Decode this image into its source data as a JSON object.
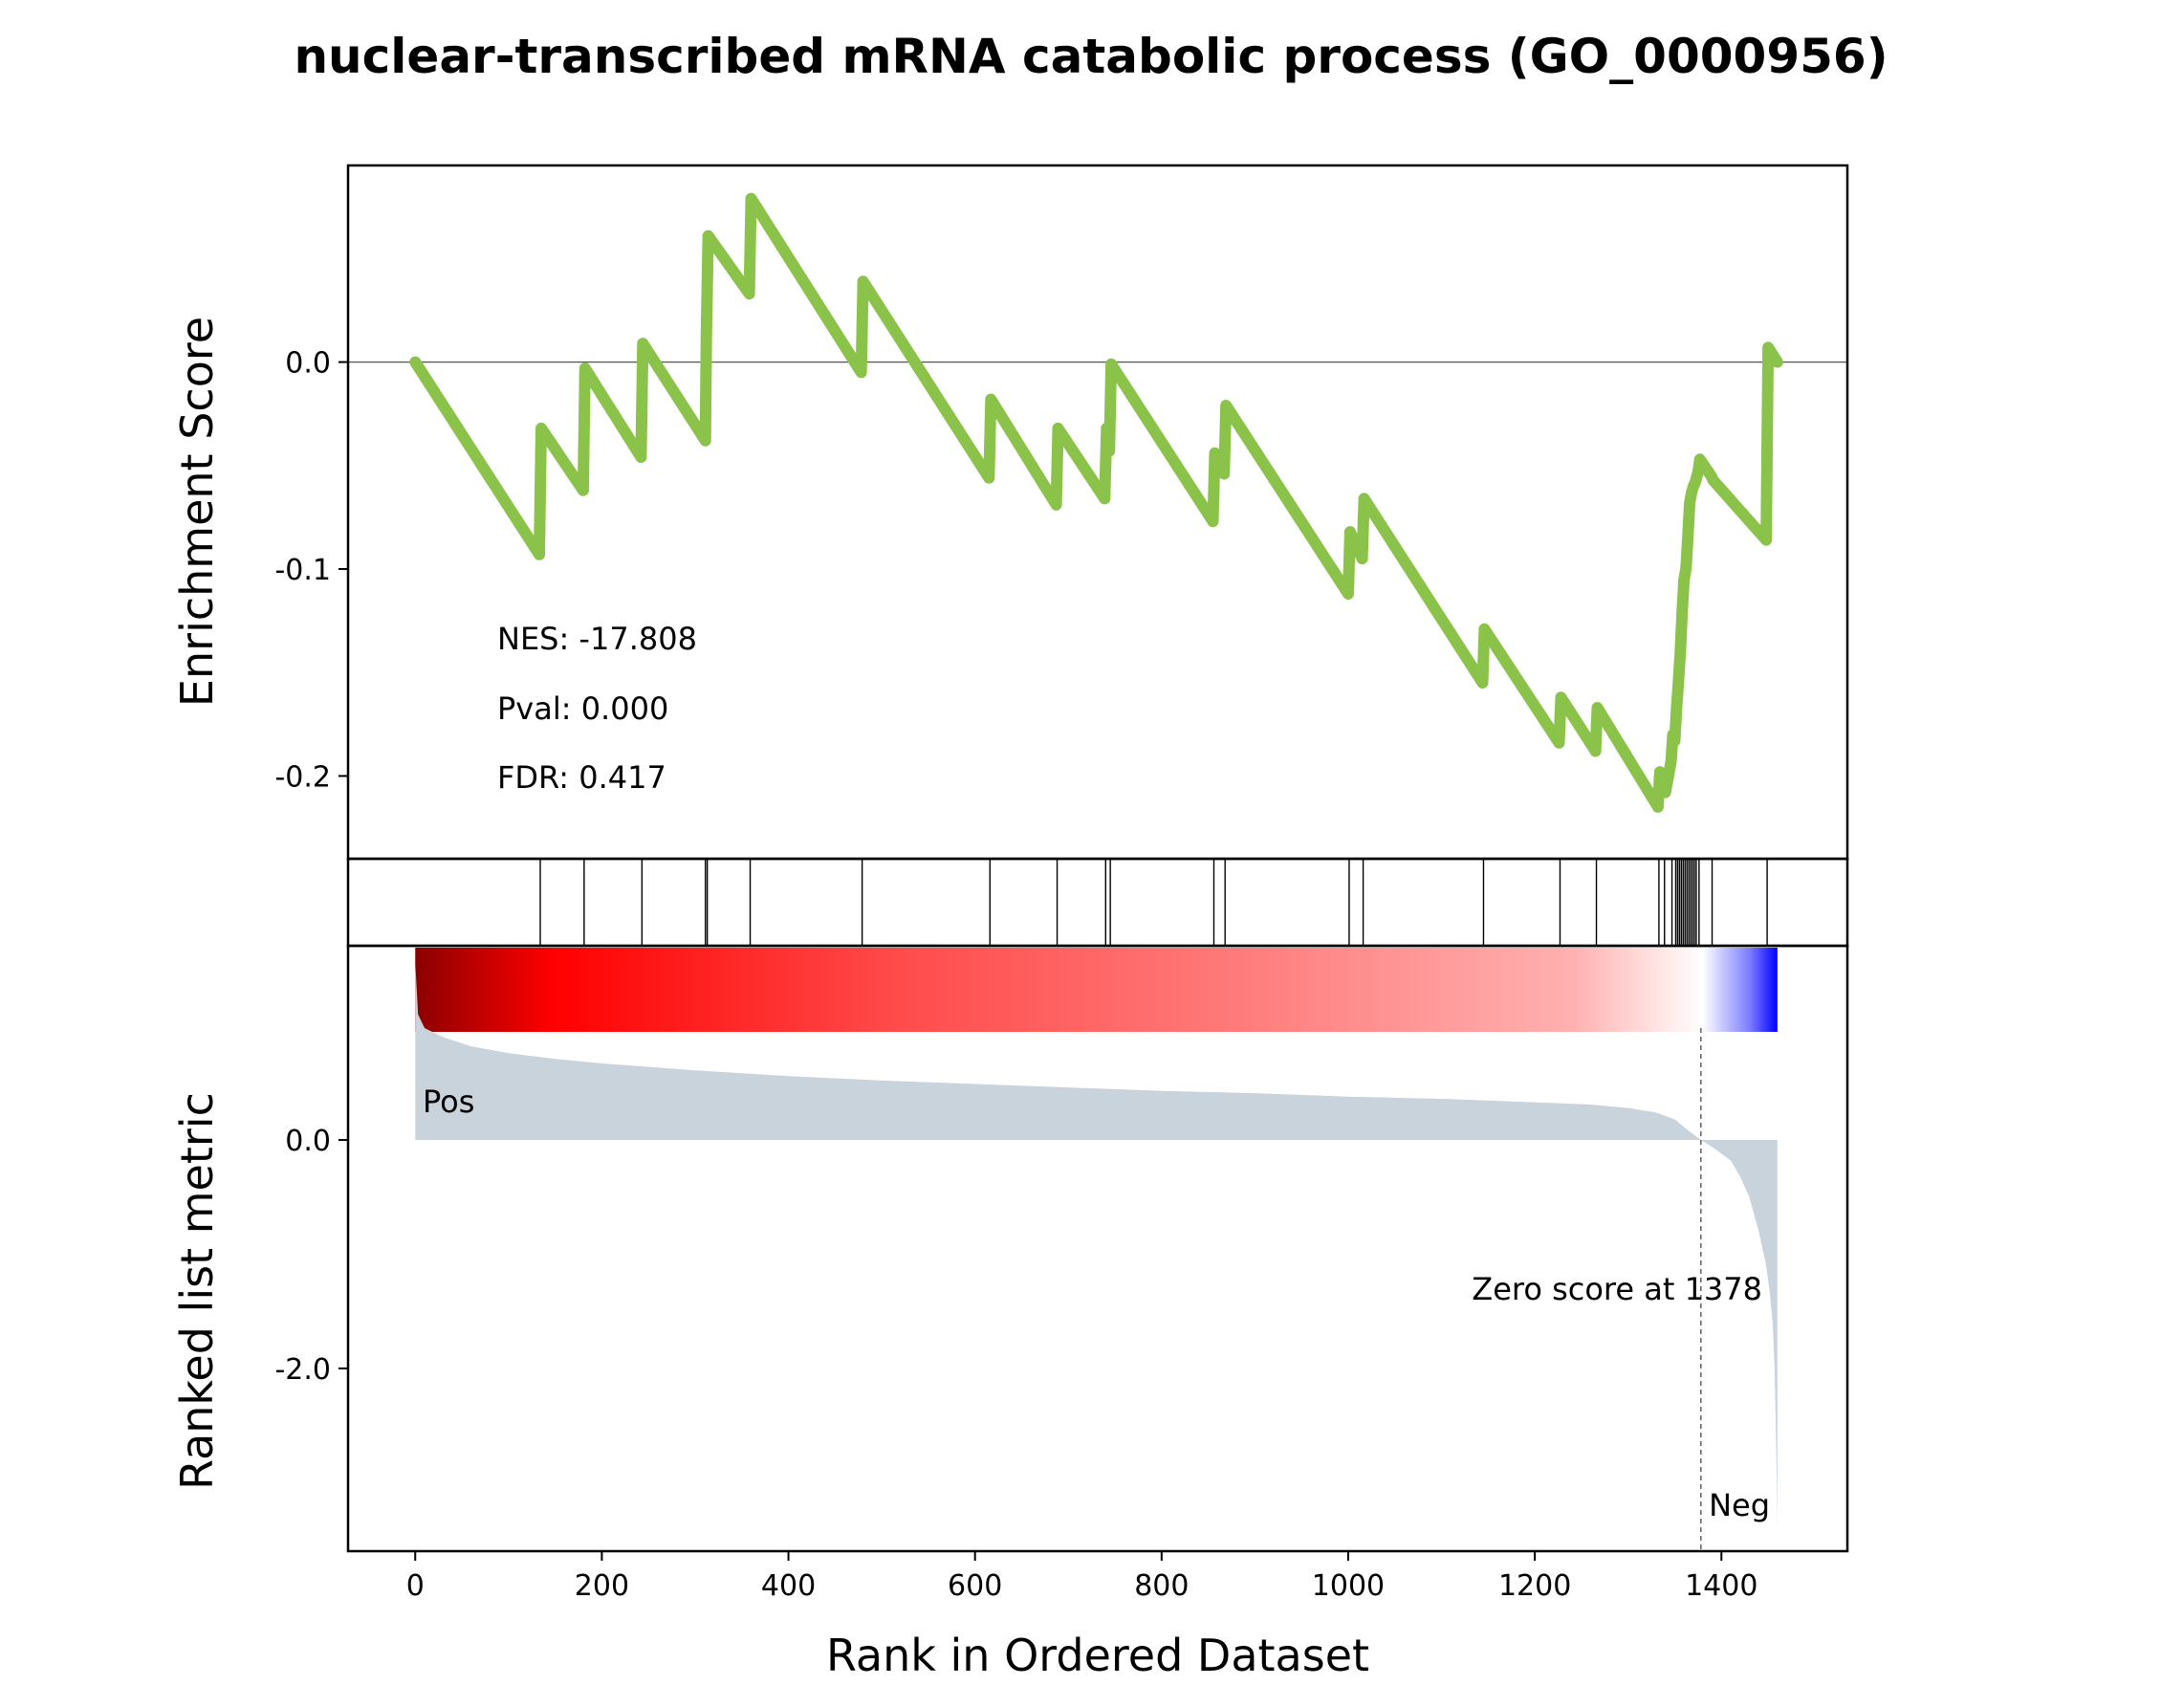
{
  "chart_data": {
    "type": "line",
    "title": "nuclear-transcribed mRNA catabolic process (GO_0000956)",
    "top_panel": {
      "ylabel": "Enrichment Score",
      "ylim": [
        -0.24,
        0.095
      ],
      "yticks": [
        0.0,
        -0.1,
        -0.2
      ],
      "ytick_labels": [
        "0.0",
        "-0.1",
        "-0.2"
      ],
      "zero_line": true,
      "line_color": "#8bc34a",
      "series": {
        "x": [
          0,
          133,
          135,
          180,
          182,
          242,
          244,
          311,
          312,
          314,
          358,
          360,
          478,
          480,
          615,
          617,
          687,
          689,
          739,
          741,
          744,
          746,
          855,
          857,
          867,
          869,
          1000,
          1002,
          1015,
          1017,
          1144,
          1146,
          1226,
          1228,
          1265,
          1267,
          1332,
          1334,
          1338,
          1340,
          1346,
          1348,
          1350,
          1352,
          1354,
          1356,
          1358,
          1360,
          1362,
          1364,
          1366,
          1368,
          1370,
          1372,
          1375,
          1377,
          1389,
          1391,
          1448,
          1450,
          1460
        ],
        "y": [
          0.0,
          -0.093,
          -0.032,
          -0.062,
          -0.003,
          -0.046,
          0.009,
          -0.038,
          0.012,
          0.061,
          0.033,
          0.079,
          -0.005,
          0.039,
          -0.056,
          -0.018,
          -0.069,
          -0.032,
          -0.066,
          -0.032,
          -0.043,
          -0.001,
          -0.077,
          -0.044,
          -0.054,
          -0.021,
          -0.112,
          -0.082,
          -0.095,
          -0.066,
          -0.155,
          -0.129,
          -0.184,
          -0.162,
          -0.188,
          -0.167,
          -0.215,
          -0.198,
          -0.202,
          -0.208,
          -0.193,
          -0.18,
          -0.183,
          -0.167,
          -0.154,
          -0.14,
          -0.12,
          -0.105,
          -0.1,
          -0.085,
          -0.068,
          -0.063,
          -0.06,
          -0.058,
          -0.053,
          -0.047,
          -0.055,
          -0.057,
          -0.086,
          0.007,
          0.0
        ]
      },
      "annotations": [
        "NES: -17.808",
        "Pval: 0.000",
        "FDR: 0.417"
      ]
    },
    "hits_panel": {
      "hit_ranks": [
        134,
        181,
        243,
        311,
        313,
        359,
        479,
        616,
        688,
        740,
        745,
        856,
        868,
        1001,
        1016,
        1145,
        1227,
        1266,
        1333,
        1339,
        1347,
        1351,
        1353,
        1355,
        1357,
        1359,
        1361,
        1363,
        1365,
        1367,
        1369,
        1371,
        1373,
        1376,
        1390,
        1449
      ]
    },
    "colorbar": {
      "colors": [
        "#8b0000",
        "#ff0000",
        "#ff4a4a",
        "#ff7a7a",
        "#ffb0b0",
        "#ffffff",
        "#7b7bff",
        "#0000ff"
      ]
    },
    "bottom_panel": {
      "ylabel": "Ranked list metric",
      "xlabel": "Rank in Ordered Dataset",
      "ylim": [
        -3.6,
        1.7
      ],
      "yticks": [
        0.0,
        -2.0
      ],
      "ytick_labels": [
        "0.0",
        "-2.0"
      ],
      "xlim": [
        -72,
        1535
      ],
      "xticks": [
        0,
        200,
        400,
        600,
        800,
        1000,
        1200,
        1400
      ],
      "xtick_labels": [
        "0",
        "200",
        "400",
        "600",
        "800",
        "1000",
        "1200",
        "1400"
      ],
      "fill_color": "#c9d3dc",
      "metric": {
        "x": [
          0,
          3,
          10,
          30,
          60,
          100,
          150,
          200,
          300,
          400,
          500,
          600,
          700,
          800,
          900,
          1000,
          1100,
          1200,
          1260,
          1300,
          1330,
          1350,
          1365,
          1378,
          1390,
          1410,
          1420,
          1430,
          1440,
          1448,
          1452,
          1455,
          1457,
          1459,
          1460
        ],
        "y": [
          1.55,
          1.1,
          0.98,
          0.9,
          0.82,
          0.76,
          0.71,
          0.67,
          0.61,
          0.56,
          0.52,
          0.49,
          0.46,
          0.43,
          0.41,
          0.38,
          0.36,
          0.33,
          0.31,
          0.28,
          0.24,
          0.18,
          0.08,
          0.0,
          -0.06,
          -0.18,
          -0.32,
          -0.5,
          -0.8,
          -1.1,
          -1.35,
          -1.6,
          -2.0,
          -2.8,
          -3.4
        ]
      },
      "zero_score_rank": 1378,
      "labels": {
        "pos": "Pos",
        "neg": "Neg",
        "zero": "Zero score at 1378"
      },
      "pos_color": "#ff0000",
      "neg_color": "#0000ff"
    }
  }
}
